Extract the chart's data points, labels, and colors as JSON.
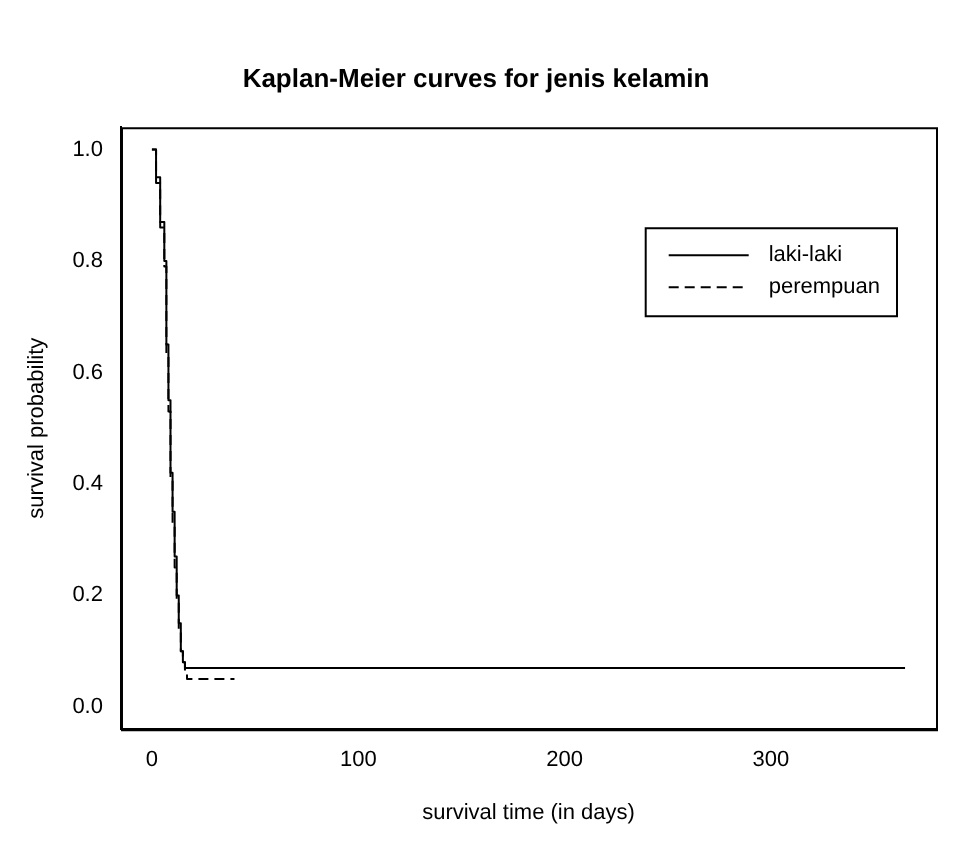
{
  "chart_data": {
    "type": "step",
    "title": "Kaplan-Meier curves for jenis kelamin",
    "xlabel": "survival time (in days)",
    "ylabel": "survival probability",
    "series": [
      {
        "name": "laki-laki",
        "color": "#000000",
        "line_style": "solid",
        "x": [
          0,
          2,
          4,
          6,
          7,
          8,
          9,
          10,
          11,
          12,
          13,
          14,
          15,
          16,
          365
        ],
        "values": [
          1,
          0.95,
          0.87,
          0.8,
          0.65,
          0.55,
          0.42,
          0.35,
          0.27,
          0.2,
          0.15,
          0.1,
          0.08,
          0.07,
          0.07
        ]
      },
      {
        "name": "perempuan",
        "color": "#000000",
        "line_style": "dashed",
        "x": [
          0,
          2,
          4,
          6,
          7,
          8,
          9,
          10,
          11,
          12,
          13,
          14,
          15,
          16,
          17,
          40
        ],
        "values": [
          1,
          0.94,
          0.86,
          0.79,
          0.63,
          0.53,
          0.41,
          0.33,
          0.25,
          0.19,
          0.14,
          0.1,
          0.08,
          0.065,
          0.05,
          0.05
        ]
      }
    ],
    "xlim": [
      -15,
      380
    ],
    "xticks": [
      0,
      100,
      200,
      300
    ],
    "ylim": [
      -0.04,
      1.04
    ],
    "yticks": [
      {
        "value": 0,
        "label": "0.0"
      },
      {
        "value": 0.2,
        "label": "0.2"
      },
      {
        "value": 0.4,
        "label": "0.4"
      },
      {
        "value": 0.6,
        "label": "0.6"
      },
      {
        "value": 0.8,
        "label": "0.8"
      },
      {
        "value": 1,
        "label": "1.0"
      }
    ],
    "grid": false,
    "legend": "top right"
  }
}
